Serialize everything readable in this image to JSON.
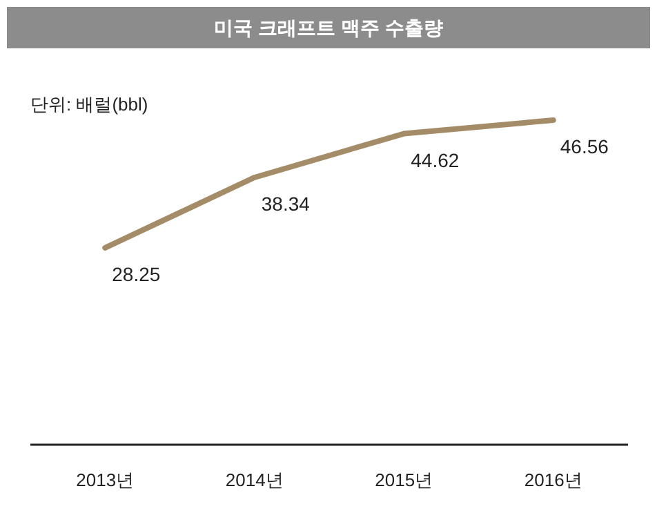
{
  "chart_data": {
    "type": "line",
    "title": "미국 크래프트 맥주 수출량",
    "annotations": [
      "단위: 배럴(bbl)"
    ],
    "categories": [
      "2013년",
      "2014년",
      "2015년",
      "2016년"
    ],
    "series": [
      {
        "color": "#a58c68",
        "values": [
          28.25,
          38.34,
          44.62,
          46.56
        ]
      }
    ],
    "data_labels": true,
    "marker": "none",
    "line_style": "solid"
  }
}
